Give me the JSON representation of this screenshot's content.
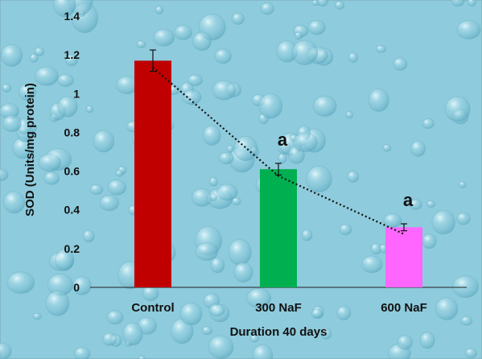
{
  "chart_data": {
    "type": "bar",
    "title": "",
    "xlabel": "Duration 40 days",
    "ylabel": "SOD (Units/mg protein)",
    "ylim": [
      0,
      1.4
    ],
    "yticks": [
      0,
      0.2,
      0.4,
      0.6,
      0.8,
      1,
      1.2,
      1.4
    ],
    "categories": [
      "Control",
      "300 NaF",
      "600 NaF"
    ],
    "values": [
      1.17,
      0.61,
      0.31
    ],
    "errors": [
      0.055,
      0.03,
      0.018
    ],
    "significance": [
      "",
      "a",
      "a"
    ],
    "bar_colors": [
      "#c00000",
      "#00b050",
      "#ff66ff"
    ],
    "trendline": {
      "style": "dotted",
      "color": "#111111"
    },
    "grid": false,
    "legend": "none"
  }
}
